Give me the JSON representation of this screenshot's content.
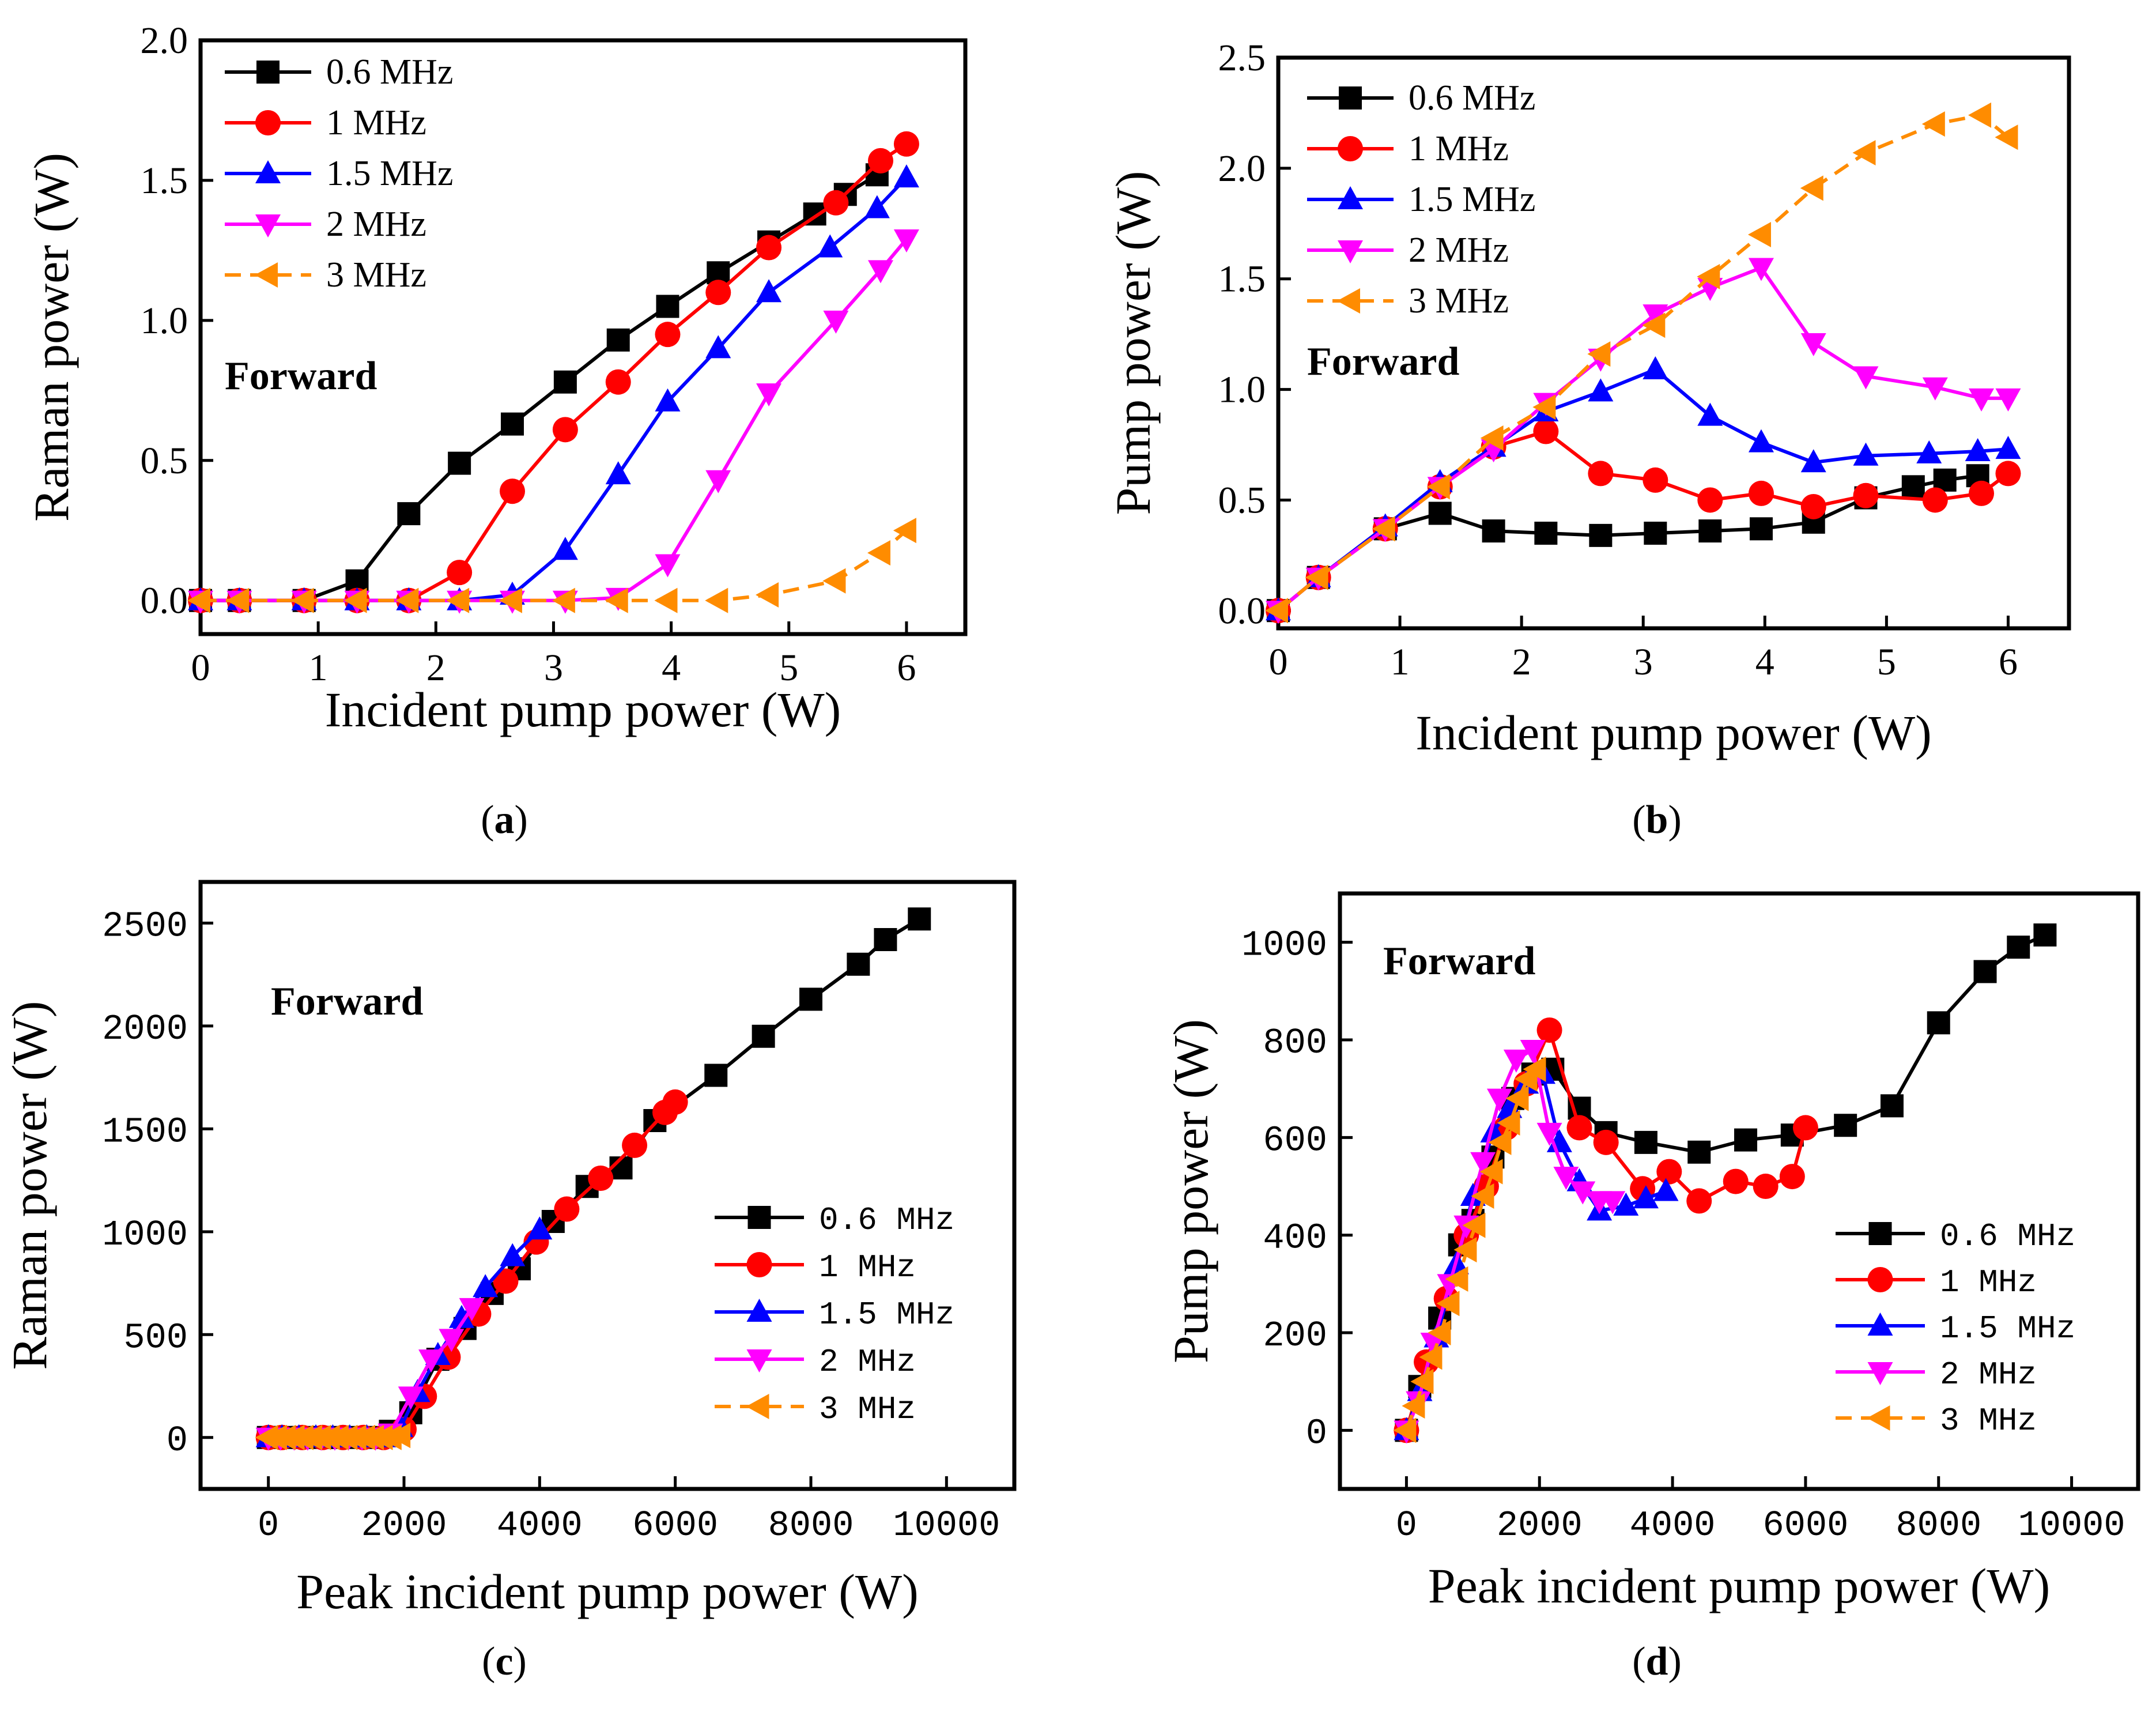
{
  "figure": {
    "captions": [
      {
        "open": "(",
        "letter": "a",
        "close": ")"
      },
      {
        "open": "(",
        "letter": "b",
        "close": ")"
      },
      {
        "open": "(",
        "letter": "c",
        "close": ")"
      },
      {
        "open": "(",
        "letter": "d",
        "close": ")"
      }
    ]
  },
  "series_colors": {
    "0.6 MHz": "#000000",
    "1 MHz": "#ff0000",
    "1.5 MHz": "#0000ff",
    "2 MHz": "#ff00ff",
    "3 MHz": "#ff8c00"
  },
  "chart_data": [
    {
      "id": "a",
      "type": "line",
      "title": "",
      "xlabel": "Incident pump power (W)",
      "ylabel": "Raman power (W)",
      "xlim": [
        0,
        6.5
      ],
      "ylim": [
        -0.12,
        2.0
      ],
      "xticks": [
        0,
        1,
        2,
        3,
        4,
        5,
        6
      ],
      "xtick_labels": [
        "0",
        "1",
        "2",
        "3",
        "4",
        "5",
        "6"
      ],
      "yticks": [
        0,
        0.5,
        1.0,
        1.5,
        2.0
      ],
      "ytick_labels": [
        "0.0",
        "0.5",
        "1.0",
        "1.5",
        "2.0"
      ],
      "annotation": "Forward",
      "legend": {
        "position": "top-left",
        "font": "serif",
        "entries": [
          "0.6 MHz",
          "1   MHz",
          "1.5 MHz",
          "2   MHz",
          "3   MHz"
        ]
      },
      "series": [
        {
          "name": "0.6 MHz",
          "color": "#000000",
          "marker": "square",
          "dash": false,
          "x": [
            0,
            0.33,
            0.88,
            1.33,
            1.77,
            2.2,
            2.65,
            3.1,
            3.55,
            3.97,
            4.4,
            4.83,
            5.22,
            5.48,
            5.75
          ],
          "y": [
            0,
            0,
            0,
            0.07,
            0.31,
            0.49,
            0.63,
            0.78,
            0.93,
            1.05,
            1.17,
            1.28,
            1.38,
            1.45,
            1.52
          ]
        },
        {
          "name": "1   MHz",
          "color": "#ff0000",
          "marker": "circle",
          "dash": false,
          "x": [
            0,
            0.33,
            0.88,
            1.33,
            1.77,
            2.2,
            2.65,
            3.1,
            3.55,
            3.97,
            4.4,
            4.83,
            5.4,
            5.78,
            6.0
          ],
          "y": [
            0,
            0,
            0,
            0,
            0,
            0.1,
            0.39,
            0.61,
            0.78,
            0.95,
            1.1,
            1.26,
            1.42,
            1.57,
            1.63
          ]
        },
        {
          "name": "1.5 MHz",
          "color": "#0000ff",
          "marker": "triangle-up",
          "dash": false,
          "x": [
            0,
            0.33,
            0.88,
            1.33,
            1.77,
            2.2,
            2.65,
            3.1,
            3.55,
            3.97,
            4.4,
            4.83,
            5.35,
            5.75,
            6.0
          ],
          "y": [
            0,
            0,
            0,
            0,
            0,
            0,
            0.02,
            0.18,
            0.45,
            0.71,
            0.9,
            1.1,
            1.26,
            1.4,
            1.51
          ]
        },
        {
          "name": "2   MHz",
          "color": "#ff00ff",
          "marker": "triangle-down",
          "dash": false,
          "x": [
            0,
            0.33,
            0.88,
            1.33,
            1.77,
            2.2,
            2.65,
            3.1,
            3.55,
            3.97,
            4.4,
            4.83,
            5.4,
            5.78,
            6.0
          ],
          "y": [
            0,
            0,
            0,
            0,
            0,
            0,
            0,
            0,
            0.01,
            0.13,
            0.43,
            0.74,
            1.0,
            1.18,
            1.29
          ]
        },
        {
          "name": "3   MHz",
          "color": "#ff8c00",
          "marker": "triangle-left",
          "dash": true,
          "x": [
            0,
            0.33,
            0.88,
            1.33,
            1.77,
            2.2,
            2.65,
            3.1,
            3.55,
            3.97,
            4.4,
            4.83,
            5.4,
            5.78,
            6.0
          ],
          "y": [
            0,
            0,
            0,
            0,
            0,
            0,
            0,
            0,
            0,
            0,
            0,
            0.02,
            0.07,
            0.17,
            0.25
          ]
        }
      ]
    },
    {
      "id": "b",
      "type": "line",
      "title": "",
      "xlabel": "Incident pump power (W)",
      "ylabel": "Pump power (W)",
      "xlim": [
        0,
        6.5
      ],
      "ylim": [
        -0.08,
        2.5
      ],
      "xticks": [
        0,
        1,
        2,
        3,
        4,
        5,
        6
      ],
      "xtick_labels": [
        "0",
        "1",
        "2",
        "3",
        "4",
        "5",
        "6"
      ],
      "yticks": [
        0,
        0.5,
        1.0,
        1.5,
        2.0,
        2.5
      ],
      "ytick_labels": [
        "0.0",
        "0.5",
        "1.0",
        "1.5",
        "2.0",
        "2.5"
      ],
      "annotation": "Forward",
      "legend": {
        "position": "top-left",
        "font": "serif",
        "entries": [
          "0.6 MHz",
          "1   MHz",
          "1.5 MHz",
          "2   MHz",
          "3   MHz"
        ]
      },
      "series": [
        {
          "name": "0.6 MHz",
          "color": "#000000",
          "marker": "square",
          "dash": false,
          "x": [
            0,
            0.33,
            0.88,
            1.33,
            1.77,
            2.2,
            2.65,
            3.1,
            3.55,
            3.97,
            4.4,
            4.83,
            5.22,
            5.48,
            5.75
          ],
          "y": [
            0,
            0.15,
            0.37,
            0.44,
            0.36,
            0.35,
            0.34,
            0.35,
            0.36,
            0.37,
            0.4,
            0.51,
            0.56,
            0.59,
            0.61
          ]
        },
        {
          "name": "1   MHz",
          "color": "#ff0000",
          "marker": "circle",
          "dash": false,
          "x": [
            0,
            0.33,
            0.88,
            1.33,
            1.77,
            2.2,
            2.65,
            3.1,
            3.55,
            3.97,
            4.4,
            4.83,
            5.4,
            5.78,
            6.0
          ],
          "y": [
            0,
            0.15,
            0.37,
            0.56,
            0.74,
            0.81,
            0.62,
            0.59,
            0.5,
            0.53,
            0.47,
            0.52,
            0.5,
            0.53,
            0.62
          ]
        },
        {
          "name": "1.5 MHz",
          "color": "#0000ff",
          "marker": "triangle-up",
          "dash": false,
          "x": [
            0,
            0.33,
            0.88,
            1.33,
            1.77,
            2.2,
            2.65,
            3.1,
            3.55,
            3.97,
            4.4,
            4.83,
            5.35,
            5.75,
            6.0
          ],
          "y": [
            0,
            0.15,
            0.38,
            0.58,
            0.74,
            0.9,
            0.99,
            1.09,
            0.88,
            0.76,
            0.67,
            0.7,
            0.71,
            0.72,
            0.73
          ]
        },
        {
          "name": "2   MHz",
          "color": "#ff00ff",
          "marker": "triangle-down",
          "dash": false,
          "x": [
            0,
            0.33,
            0.88,
            1.33,
            1.77,
            2.2,
            2.65,
            3.1,
            3.55,
            3.97,
            4.4,
            4.83,
            5.4,
            5.78,
            6.0
          ],
          "y": [
            0,
            0.15,
            0.37,
            0.56,
            0.73,
            0.94,
            1.14,
            1.34,
            1.46,
            1.55,
            1.21,
            1.06,
            1.01,
            0.96,
            0.96
          ]
        },
        {
          "name": "3   MHz",
          "color": "#ff8c00",
          "marker": "triangle-left",
          "dash": true,
          "x": [
            0,
            0.33,
            0.88,
            1.33,
            1.77,
            2.2,
            2.65,
            3.1,
            3.55,
            3.97,
            4.4,
            4.83,
            5.4,
            5.78,
            6.0
          ],
          "y": [
            0,
            0.15,
            0.37,
            0.56,
            0.78,
            0.92,
            1.16,
            1.29,
            1.51,
            1.7,
            1.91,
            2.07,
            2.2,
            2.24,
            2.14
          ]
        }
      ]
    },
    {
      "id": "c",
      "type": "line",
      "title": "",
      "xlabel": "Peak incident pump power (W)",
      "ylabel": "Raman power (W)",
      "xlim": [
        -1000,
        11000
      ],
      "ylim": [
        -250,
        2700
      ],
      "xticks": [
        0,
        2000,
        4000,
        6000,
        8000,
        10000
      ],
      "xtick_labels": [
        "0",
        "2000",
        "4000",
        "6000",
        "8000",
        "10000"
      ],
      "yticks": [
        0,
        500,
        1000,
        1500,
        2000,
        2500
      ],
      "ytick_labels": [
        "0",
        "500",
        "1000",
        "1500",
        "2000",
        "2500"
      ],
      "annotation": "Forward",
      "legend": {
        "position": "lower-right",
        "font": "mono",
        "entries": [
          "0.6 MHz",
          "1   MHz",
          "1.5 MHz",
          "2   MHz",
          "3   MHz"
        ]
      },
      "series": [
        {
          "name": "0.6 MHz",
          "color": "#000000",
          "marker": "square",
          "dash": false,
          "x": [
            0,
            200,
            500,
            800,
            1000,
            1200,
            1500,
            1800,
            2100,
            2500,
            2900,
            3300,
            3700,
            4200,
            4700,
            5200,
            5700,
            6600,
            7300,
            8000,
            8700,
            9100,
            9600
          ],
          "y": [
            0,
            0,
            0,
            0,
            0,
            0,
            0,
            30,
            120,
            380,
            530,
            700,
            820,
            1050,
            1220,
            1310,
            1540,
            1760,
            1950,
            2130,
            2300,
            2420,
            2520
          ]
        },
        {
          "name": "1   MHz",
          "color": "#ff0000",
          "marker": "circle",
          "dash": false,
          "x": [
            0,
            200,
            500,
            800,
            1100,
            1400,
            1700,
            2000,
            2300,
            2650,
            3100,
            3500,
            3950,
            4400,
            4900,
            5400,
            5850,
            6000
          ],
          "y": [
            0,
            0,
            0,
            0,
            0,
            0,
            0,
            40,
            200,
            390,
            600,
            760,
            950,
            1110,
            1260,
            1420,
            1580,
            1630
          ]
        },
        {
          "name": "1.5 MHz",
          "color": "#0000ff",
          "marker": "triangle-up",
          "dash": false,
          "x": [
            0,
            200,
            450,
            700,
            950,
            1200,
            1450,
            1700,
            1950,
            2200,
            2500,
            2850,
            3200,
            3600,
            4000
          ],
          "y": [
            0,
            0,
            0,
            0,
            0,
            0,
            0,
            0,
            50,
            220,
            400,
            580,
            730,
            880,
            1010
          ]
        },
        {
          "name": "2   MHz",
          "color": "#ff00ff",
          "marker": "triangle-down",
          "dash": false,
          "x": [
            0,
            180,
            380,
            580,
            780,
            980,
            1180,
            1380,
            1580,
            1800,
            2100,
            2400,
            2700,
            3000
          ],
          "y": [
            0,
            0,
            0,
            0,
            0,
            0,
            0,
            0,
            0,
            20,
            200,
            380,
            480,
            630
          ]
        },
        {
          "name": "3   MHz",
          "color": "#ff8c00",
          "marker": "triangle-left",
          "dash": true,
          "x": [
            0,
            130,
            260,
            390,
            520,
            650,
            780,
            910,
            1040,
            1170,
            1300,
            1430,
            1560,
            1690,
            1820,
            1950
          ],
          "y": [
            0,
            0,
            0,
            0,
            0,
            0,
            0,
            0,
            0,
            0,
            0,
            0,
            0,
            0,
            0,
            10
          ]
        }
      ]
    },
    {
      "id": "d",
      "type": "line",
      "title": "",
      "xlabel": "Peak incident pump power (W)",
      "ylabel": "Pump power (W)",
      "xlim": [
        -1000,
        11000
      ],
      "ylim": [
        -120,
        1100
      ],
      "xticks": [
        0,
        2000,
        4000,
        6000,
        8000,
        10000
      ],
      "xtick_labels": [
        "0",
        "2000",
        "4000",
        "6000",
        "8000",
        "10000"
      ],
      "yticks": [
        0,
        200,
        400,
        600,
        800,
        1000
      ],
      "ytick_labels": [
        "0",
        "200",
        "400",
        "600",
        "800",
        "1000"
      ],
      "annotation": "Forward",
      "legend": {
        "position": "lower-right",
        "font": "mono",
        "entries": [
          "0.6 MHz",
          "1   MHz",
          "1.5 MHz",
          "2   MHz",
          "3   MHz"
        ]
      },
      "series": [
        {
          "name": "0.6 MHz",
          "color": "#000000",
          "marker": "square",
          "dash": false,
          "x": [
            0,
            200,
            500,
            800,
            1000,
            1300,
            1600,
            1900,
            2200,
            2600,
            3000,
            3600,
            4400,
            5100,
            5800,
            6600,
            7300,
            8000,
            8700,
            9200,
            9600
          ],
          "y": [
            0,
            90,
            230,
            380,
            430,
            560,
            680,
            730,
            740,
            660,
            610,
            590,
            570,
            595,
            605,
            625,
            665,
            835,
            940,
            990,
            1015
          ]
        },
        {
          "name": "1   MHz",
          "color": "#ff0000",
          "marker": "circle",
          "dash": false,
          "x": [
            0,
            300,
            600,
            900,
            1200,
            1500,
            1800,
            2150,
            2600,
            3000,
            3550,
            3950,
            4400,
            4950,
            5400,
            5800,
            6000
          ],
          "y": [
            0,
            140,
            270,
            400,
            500,
            620,
            710,
            820,
            620,
            590,
            495,
            530,
            470,
            510,
            500,
            520,
            620
          ]
        },
        {
          "name": "1.5 MHz",
          "color": "#0000ff",
          "marker": "triangle-up",
          "dash": false,
          "x": [
            0,
            200,
            450,
            750,
            1000,
            1300,
            1550,
            1800,
            2050,
            2300,
            2600,
            2900,
            3300,
            3600,
            3900
          ],
          "y": [
            0,
            80,
            190,
            340,
            480,
            610,
            660,
            710,
            730,
            590,
            510,
            450,
            460,
            475,
            490
          ]
        },
        {
          "name": "2   MHz",
          "color": "#ff00ff",
          "marker": "triangle-down",
          "dash": false,
          "x": [
            0,
            180,
            400,
            650,
            900,
            1150,
            1400,
            1650,
            1900,
            2150,
            2400,
            2650,
            2900,
            3100
          ],
          "y": [
            0,
            60,
            180,
            300,
            420,
            550,
            680,
            760,
            780,
            610,
            520,
            490,
            470,
            470
          ]
        },
        {
          "name": "3   MHz",
          "color": "#ff8c00",
          "marker": "triangle-left",
          "dash": true,
          "x": [
            0,
            130,
            260,
            390,
            520,
            650,
            780,
            910,
            1040,
            1170,
            1300,
            1430,
            1560,
            1690,
            1820,
            1950
          ],
          "y": [
            0,
            50,
            100,
            150,
            200,
            260,
            310,
            370,
            420,
            480,
            530,
            590,
            630,
            680,
            720,
            740
          ]
        }
      ]
    }
  ]
}
